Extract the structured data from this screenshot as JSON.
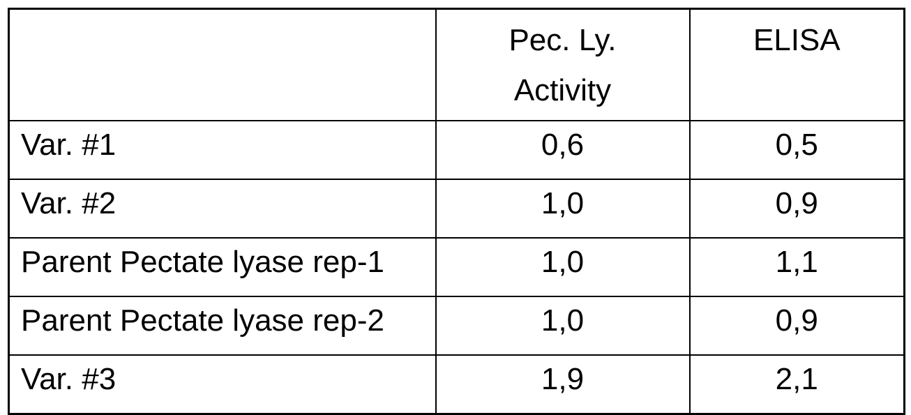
{
  "table": {
    "headers": {
      "row_label": "",
      "pec_ly_line1": "Pec. Ly.",
      "pec_ly_line2": "Activity",
      "elisa": "ELISA"
    },
    "rows": [
      {
        "label": "Var. #1",
        "pec_ly": "0,6",
        "elisa": "0,5"
      },
      {
        "label": "Var. #2",
        "pec_ly": "1,0",
        "elisa": "0,9"
      },
      {
        "label": "Parent Pectate lyase rep-1",
        "pec_ly": "1,0",
        "elisa": "1,1"
      },
      {
        "label": "Parent Pectate lyase rep-2",
        "pec_ly": "1,0",
        "elisa": "0,9"
      },
      {
        "label": "Var. #3",
        "pec_ly": "1,9",
        "elisa": "2,1"
      }
    ],
    "colors": {
      "border": "#000000",
      "text": "#000000",
      "background": "#ffffff"
    }
  }
}
